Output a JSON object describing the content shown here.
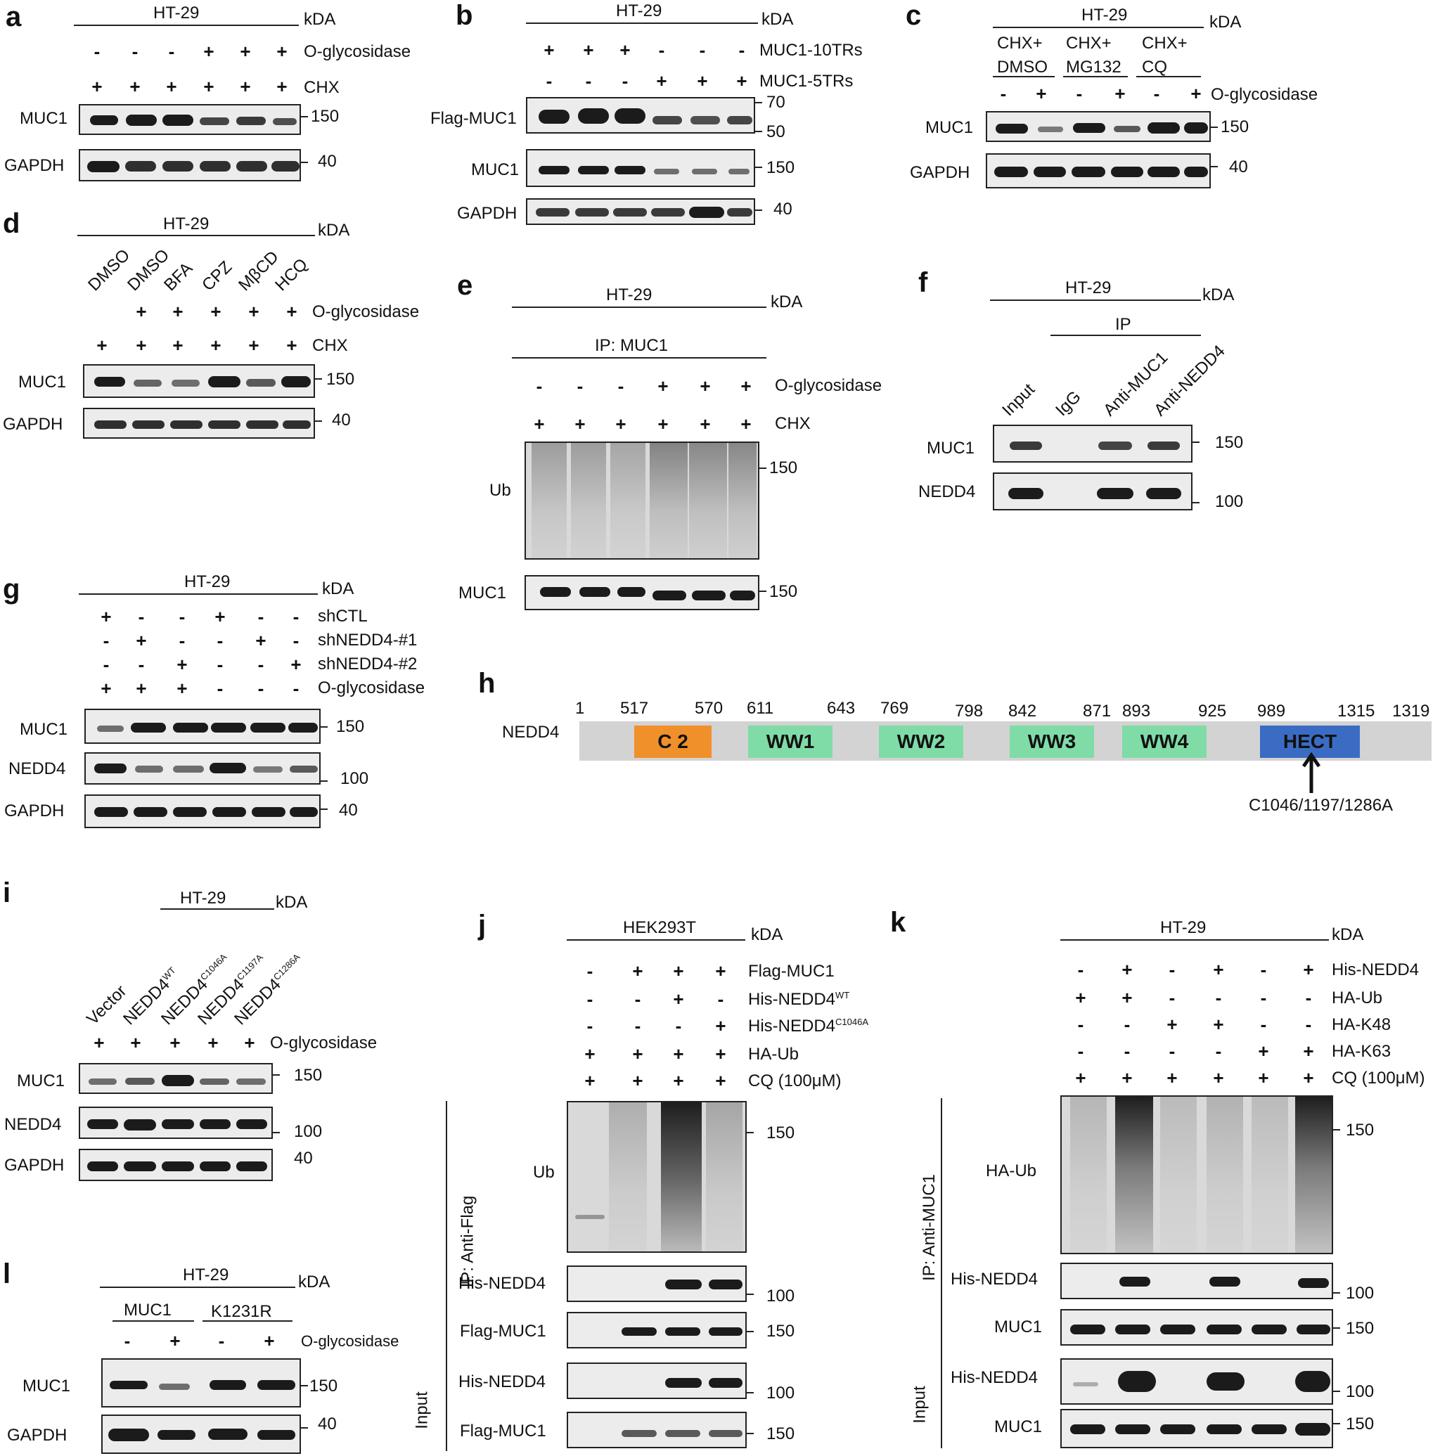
{
  "panels": {
    "a": {
      "letter": "a",
      "cell": "HT-29",
      "kda": "kDA",
      "row1": [
        "-",
        "-",
        "-",
        "+",
        "+",
        "+"
      ],
      "row1_label": "O-glycosidase",
      "row2": [
        "+",
        "+",
        "+",
        "+",
        "+",
        "+"
      ],
      "row2_label": "CHX",
      "blots": [
        "MUC1",
        "GAPDH"
      ],
      "mw": [
        "150",
        "40"
      ]
    },
    "b": {
      "letter": "b",
      "cell": "HT-29",
      "kda": "kDA",
      "row1": [
        "+",
        "+",
        "+",
        "-",
        "-",
        "-"
      ],
      "row1_label": "MUC1-10TRs",
      "row2": [
        "-",
        "-",
        "-",
        "+",
        "+",
        "+"
      ],
      "row2_label": "MUC1-5TRs",
      "blots": [
        "Flag-MUC1",
        "MUC1",
        "GAPDH"
      ],
      "mw": [
        "70",
        "50",
        "150",
        "40"
      ]
    },
    "c": {
      "letter": "c",
      "cell": "HT-29",
      "kda": "kDA",
      "groups": [
        "CHX+ DMSO",
        "CHX+ MG132",
        "CHX+ CQ"
      ],
      "group_a": "CHX+",
      "group_b": [
        "DMSO",
        "MG132",
        "CQ"
      ],
      "row1": [
        "-",
        "+",
        "-",
        "+",
        "-",
        "+"
      ],
      "row1_label": "O-glycosidase",
      "blots": [
        "MUC1",
        "GAPDH"
      ],
      "mw": [
        "150",
        "40"
      ]
    },
    "d": {
      "letter": "d",
      "cell": "HT-29",
      "kda": "kDA",
      "lanes": [
        "DMSO",
        "DMSO",
        "BFA",
        "CPZ",
        "MβCD",
        "HCQ"
      ],
      "row1": [
        "",
        "+",
        "+",
        "+",
        "+",
        "+"
      ],
      "row1_label": "O-glycosidase",
      "row2": [
        "+",
        "+",
        "+",
        "+",
        "+",
        "+"
      ],
      "row2_label": "CHX",
      "blots": [
        "MUC1",
        "GAPDH"
      ],
      "mw": [
        "150",
        "40"
      ]
    },
    "e": {
      "letter": "e",
      "cell": "HT-29",
      "kda": "kDA",
      "ip": "IP: MUC1",
      "row1": [
        "-",
        "-",
        "-",
        "+",
        "+",
        "+"
      ],
      "row1_label": "O-glycosidase",
      "row2": [
        "+",
        "+",
        "+",
        "+",
        "+",
        "+"
      ],
      "row2_label": "CHX",
      "blots": [
        "Ub",
        "MUC1"
      ],
      "mw": [
        "150",
        "150"
      ]
    },
    "f": {
      "letter": "f",
      "cell": "HT-29",
      "kda": "kDA",
      "ip": "IP",
      "lanes": [
        "Input",
        "IgG",
        "Anti-MUC1",
        "Anti-NEDD4"
      ],
      "blots": [
        "MUC1",
        "NEDD4"
      ],
      "mw": [
        "150",
        "100"
      ]
    },
    "g": {
      "letter": "g",
      "cell": "HT-29",
      "kda": "kDA",
      "rows": [
        {
          "signs": [
            "+",
            "-",
            "-",
            "+",
            "-",
            "-"
          ],
          "label": "shCTL"
        },
        {
          "signs": [
            "-",
            "+",
            "-",
            "-",
            "+",
            "-"
          ],
          "label": "shNEDD4-#1"
        },
        {
          "signs": [
            "-",
            "-",
            "+",
            "-",
            "-",
            "+"
          ],
          "label": "shNEDD4-#2"
        },
        {
          "signs": [
            "+",
            "+",
            "+",
            "-",
            "-",
            "-"
          ],
          "label": "O-glycosidase"
        }
      ],
      "blots": [
        "MUC1",
        "NEDD4",
        "GAPDH"
      ],
      "mw": [
        "150",
        "100",
        "40"
      ]
    },
    "h": {
      "letter": "h",
      "protein": "NEDD4",
      "positions": [
        "1",
        "517",
        "570",
        "611",
        "643",
        "769",
        "798",
        "842",
        "871",
        "893",
        "925",
        "989",
        "1315",
        "1319"
      ],
      "domains": [
        "C 2",
        "WW1",
        "WW2",
        "WW3",
        "WW4",
        "HECT"
      ],
      "mutation": "C1046/1197/1286A",
      "colors": {
        "c2": "#f0902a",
        "ww": "#7fdca6",
        "hect": "#3b6cc4",
        "track": "#d3d3d3"
      }
    },
    "i": {
      "letter": "i",
      "cell": "HT-29",
      "kda": "kDA",
      "lanes": [
        "Vector",
        "NEDD4",
        "NEDD4",
        "NEDD4",
        "NEDD4"
      ],
      "lane_sups": [
        "",
        "WT",
        "C1046A",
        "C1197A",
        "C1286A"
      ],
      "row1": [
        "+",
        "+",
        "+",
        "+",
        "+"
      ],
      "row1_label": "O-glycosidase",
      "blots": [
        "MUC1",
        "NEDD4",
        "GAPDH"
      ],
      "mw": [
        "150",
        "100",
        "40"
      ]
    },
    "j": {
      "letter": "j",
      "cell": "HEK293T",
      "kda": "kDA",
      "rows": [
        {
          "signs": [
            "-",
            "+",
            "+",
            "+"
          ],
          "label": "Flag-MUC1",
          "sup": ""
        },
        {
          "signs": [
            "-",
            "-",
            "+",
            "-"
          ],
          "label": "His-NEDD4",
          "sup": "WT"
        },
        {
          "signs": [
            "-",
            "-",
            "-",
            "+"
          ],
          "label": "His-NEDD4",
          "sup": "C1046A"
        },
        {
          "signs": [
            "+",
            "+",
            "+",
            "+"
          ],
          "label": "HA-Ub",
          "sup": ""
        },
        {
          "signs": [
            "+",
            "+",
            "+",
            "+"
          ],
          "label": "CQ (100μM)",
          "sup": ""
        }
      ],
      "ip": "IP: Anti-Flag",
      "input": "Input",
      "blots": [
        "Ub",
        "His-NEDD4",
        "Flag-MUC1",
        "His-NEDD4",
        "Flag-MUC1"
      ],
      "mw": [
        "150",
        "100",
        "150",
        "100",
        "150"
      ]
    },
    "k": {
      "letter": "k",
      "cell": "HT-29",
      "kda": "kDA",
      "rows": [
        {
          "signs": [
            "-",
            "+",
            "-",
            "+",
            "-",
            "+"
          ],
          "label": "His-NEDD4"
        },
        {
          "signs": [
            "+",
            "+",
            "-",
            "-",
            "-",
            "-"
          ],
          "label": "HA-Ub"
        },
        {
          "signs": [
            "-",
            "-",
            "+",
            "+",
            "-",
            "-"
          ],
          "label": "HA-K48"
        },
        {
          "signs": [
            "-",
            "-",
            "-",
            "-",
            "+",
            "+"
          ],
          "label": "HA-K63"
        },
        {
          "signs": [
            "+",
            "+",
            "+",
            "+",
            "+",
            "+"
          ],
          "label": "CQ (100μM)"
        }
      ],
      "ip": "IP: Anti-MUC1",
      "input": "Input",
      "blots": [
        "HA-Ub",
        "His-NEDD4",
        "MUC1",
        "His-NEDD4",
        "MUC1"
      ],
      "mw": [
        "150",
        "100",
        "150",
        "100",
        "150"
      ]
    },
    "l": {
      "letter": "l",
      "cell": "HT-29",
      "kda": "kDA",
      "groups": [
        "MUC1",
        "K1231R"
      ],
      "row1": [
        "-",
        "+",
        "-",
        "+"
      ],
      "row1_label": "O-glycosidase",
      "blots": [
        "MUC1",
        "GAPDH"
      ],
      "mw": [
        "150",
        "40"
      ]
    }
  }
}
